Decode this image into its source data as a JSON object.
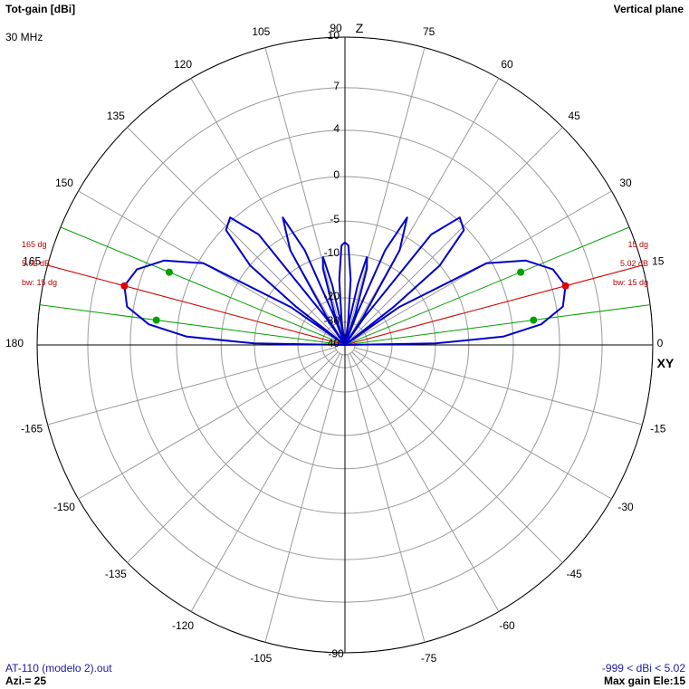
{
  "header": {
    "top_left": "Tot-gain [dBi]",
    "top_right": "Vertical plane",
    "frequency": "30 MHz"
  },
  "footer": {
    "file": "AT-110 (modelo 2).out",
    "azimuth": "Azi.= 25",
    "range": "-999 < dBi < 5.02",
    "max_gain": "Max gain Ele:15"
  },
  "colors": {
    "pattern": "#0000c8",
    "max_marker": "#e00000",
    "beamwidth": "#00a000",
    "grid": "#9a9a9a",
    "axis": "#000000",
    "annotation": "#c00000"
  },
  "chart_data": {
    "type": "polar",
    "title": "Tot-gain [dBi]",
    "plane": "Vertical plane",
    "angular_ticks": [
      "0",
      "15",
      "30",
      "45",
      "60",
      "75",
      "90",
      "105",
      "120",
      "135",
      "150",
      "165",
      "180",
      "-165",
      "-150",
      "-135",
      "-120",
      "-105",
      "-90",
      "-75",
      "-60",
      "-45",
      "-30",
      "-15"
    ],
    "axis_labels": {
      "vertical": "Z",
      "horizontal": "XY"
    },
    "radial_ticks": [
      "10",
      "7",
      "4",
      "0",
      "-5",
      "-10",
      "-20",
      "-30",
      "-40"
    ],
    "radial_range_dbi": [
      -40,
      10
    ],
    "grid": true,
    "series": [
      {
        "points": [
          {
            "angle": 0,
            "gain": -40
          },
          {
            "angle": 1,
            "gain": -10
          },
          {
            "angle": 3,
            "gain": -1
          },
          {
            "angle": 6,
            "gain": 2.6
          },
          {
            "angle": 10,
            "gain": 4.5
          },
          {
            "angle": 15,
            "gain": 5.02
          },
          {
            "angle": 20,
            "gain": 4.5
          },
          {
            "angle": 25,
            "gain": 2.8
          },
          {
            "angle": 30,
            "gain": -0.5
          },
          {
            "angle": 35,
            "gain": -15
          },
          {
            "angle": 36.5,
            "gain": -40
          },
          {
            "angle": 38,
            "gain": -16
          },
          {
            "angle": 40,
            "gain": -5
          },
          {
            "angle": 44,
            "gain": -0.3
          },
          {
            "angle": 48,
            "gain": 0.3
          },
          {
            "angle": 52,
            "gain": -3
          },
          {
            "angle": 55,
            "gain": -25
          },
          {
            "angle": 56,
            "gain": -40
          },
          {
            "angle": 57,
            "gain": -25
          },
          {
            "angle": 60,
            "gain": -7
          },
          {
            "angle": 64,
            "gain": -2.8
          },
          {
            "angle": 67,
            "gain": -8
          },
          {
            "angle": 69,
            "gain": -25
          },
          {
            "angle": 70,
            "gain": -40
          },
          {
            "angle": 71.5,
            "gain": -25
          },
          {
            "angle": 74,
            "gain": -12
          },
          {
            "angle": 76,
            "gain": -10
          },
          {
            "angle": 78,
            "gain": -16
          },
          {
            "angle": 80,
            "gain": -30
          },
          {
            "angle": 81,
            "gain": -40
          },
          {
            "angle": 82,
            "gain": -30
          },
          {
            "angle": 85,
            "gain": -15
          },
          {
            "angle": 88,
            "gain": -8.5
          },
          {
            "angle": 90,
            "gain": -8
          },
          {
            "angle": 92,
            "gain": -8.5
          },
          {
            "angle": 95,
            "gain": -15
          },
          {
            "angle": 98,
            "gain": -30
          },
          {
            "angle": 99,
            "gain": -40
          },
          {
            "angle": 100,
            "gain": -30
          },
          {
            "angle": 102,
            "gain": -16
          },
          {
            "angle": 104,
            "gain": -10
          },
          {
            "angle": 106,
            "gain": -12
          },
          {
            "angle": 108.5,
            "gain": -25
          },
          {
            "angle": 110,
            "gain": -40
          },
          {
            "angle": 111,
            "gain": -25
          },
          {
            "angle": 113,
            "gain": -8
          },
          {
            "angle": 116,
            "gain": -2.8
          },
          {
            "angle": 120,
            "gain": -7
          },
          {
            "angle": 123,
            "gain": -25
          },
          {
            "angle": 124,
            "gain": -40
          },
          {
            "angle": 125,
            "gain": -25
          },
          {
            "angle": 128,
            "gain": -3
          },
          {
            "angle": 132,
            "gain": 0.3
          },
          {
            "angle": 136,
            "gain": -0.3
          },
          {
            "angle": 140,
            "gain": -5
          },
          {
            "angle": 142,
            "gain": -16
          },
          {
            "angle": 143.5,
            "gain": -40
          },
          {
            "angle": 145,
            "gain": -15
          },
          {
            "angle": 150,
            "gain": -0.5
          },
          {
            "angle": 155,
            "gain": 2.8
          },
          {
            "angle": 160,
            "gain": 4.5
          },
          {
            "angle": 165,
            "gain": 5.02
          },
          {
            "angle": 170,
            "gain": 4.5
          },
          {
            "angle": 174,
            "gain": 2.6
          },
          {
            "angle": 177,
            "gain": -1
          },
          {
            "angle": 179,
            "gain": -10
          },
          {
            "angle": 180,
            "gain": -40
          }
        ]
      }
    ],
    "max_gain_markers": [
      {
        "angle": 15,
        "gain": 5.02
      },
      {
        "angle": 165,
        "gain": 5.02
      }
    ],
    "beamwidth_markers": [
      {
        "angle": 7.5,
        "gain": 2.0
      },
      {
        "angle": 22.5,
        "gain": 2.0
      },
      {
        "angle": 157.5,
        "gain": 2.0
      },
      {
        "angle": 172.5,
        "gain": 2.0
      }
    ],
    "annotations": {
      "right": [
        "15 dg",
        "5.02 dB",
        "bw: 15 dg"
      ],
      "left": [
        "165 dg",
        "5.02 dB",
        "bw: 15 dg"
      ]
    }
  }
}
